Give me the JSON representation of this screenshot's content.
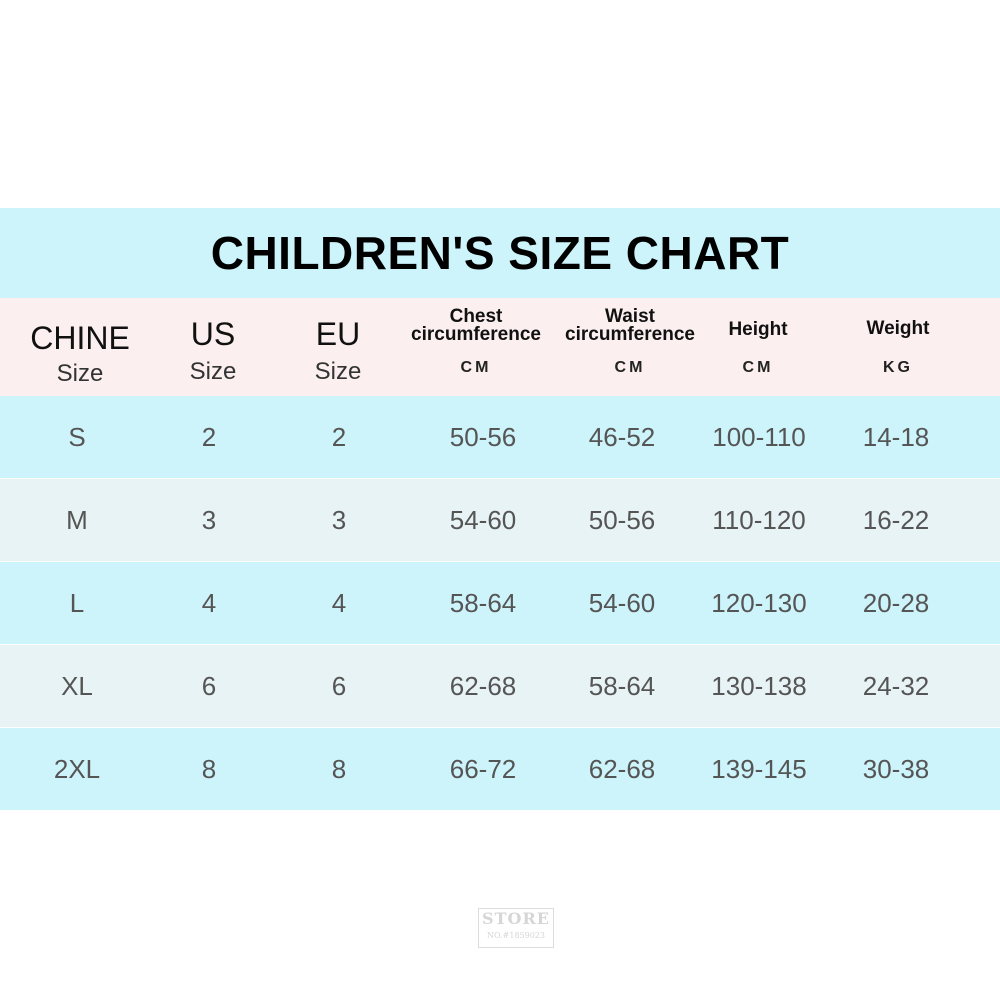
{
  "chart_data": {
    "type": "table",
    "title": "CHILDREN'S SIZE CHART",
    "columns": [
      {
        "label": "CHINE",
        "sub": "Size"
      },
      {
        "label": "US",
        "sub": "Size"
      },
      {
        "label": "EU",
        "sub": "Size"
      },
      {
        "label": "Chest",
        "label2": "circumference",
        "unit": "CM"
      },
      {
        "label": "Waist",
        "label2": "circumference",
        "unit": "CM"
      },
      {
        "label": "Height",
        "unit": "CM"
      },
      {
        "label": "Weight",
        "unit": "KG"
      }
    ],
    "rows": [
      [
        "S",
        "2",
        "2",
        "50-56",
        "46-52",
        "100-110",
        "14-18"
      ],
      [
        "M",
        "3",
        "3",
        "54-60",
        "50-56",
        "110-120",
        "16-22"
      ],
      [
        "L",
        "4",
        "4",
        "58-64",
        "54-60",
        "120-130",
        "20-28"
      ],
      [
        "XL",
        "6",
        "6",
        "62-68",
        "58-64",
        "130-138",
        "24-32"
      ],
      [
        "2XL",
        "8",
        "8",
        "66-72",
        "62-68",
        "139-145",
        "30-38"
      ]
    ]
  },
  "watermark": {
    "top": "STORE",
    "bottom": "NO.#1859023"
  }
}
